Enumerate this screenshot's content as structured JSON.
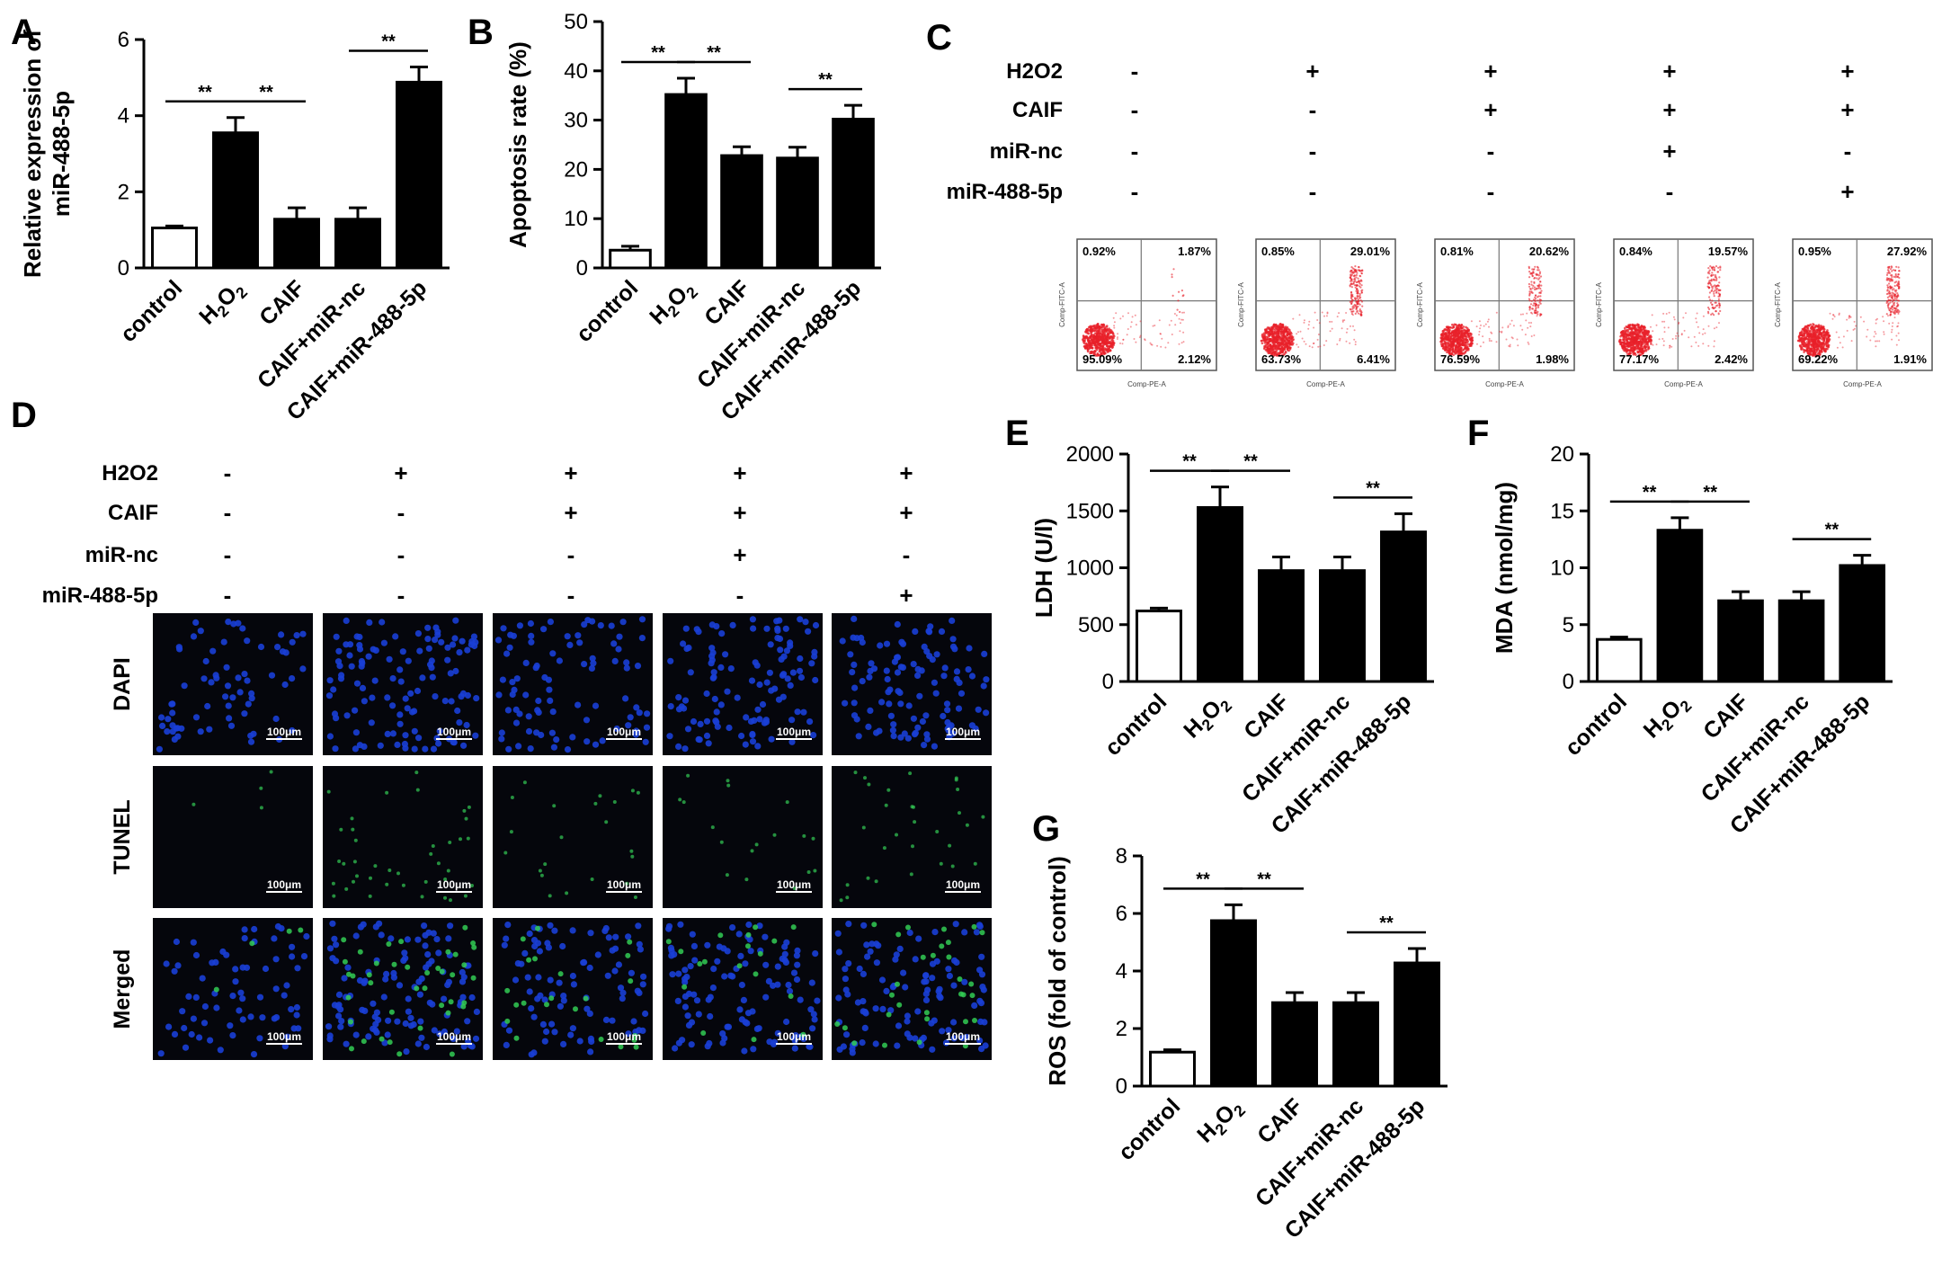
{
  "panels": {
    "A": {
      "letter": "A"
    },
    "B": {
      "letter": "B"
    },
    "C": {
      "letter": "C"
    },
    "D": {
      "letter": "D"
    },
    "E": {
      "letter": "E"
    },
    "F": {
      "letter": "F"
    },
    "G": {
      "letter": "G"
    }
  },
  "treatment_rows": [
    "H2O2",
    "CAIF",
    "miR-nc",
    "miR-488-5p"
  ],
  "treatment_signs": [
    [
      "-",
      "+",
      "+",
      "+",
      "+"
    ],
    [
      "-",
      "-",
      "+",
      "+",
      "+"
    ],
    [
      "-",
      "-",
      "-",
      "+",
      "-"
    ],
    [
      "-",
      "-",
      "-",
      "-",
      "+"
    ]
  ],
  "significance_mark": "**",
  "chart_data": [
    {
      "id": "A",
      "type": "bar",
      "categories": [
        "control",
        "H2O2",
        "CAIF",
        "CAIF+miR-nc",
        "CAIF+miR-488-5p"
      ],
      "values": [
        1.05,
        3.55,
        1.28,
        1.28,
        4.88
      ],
      "errors": [
        0.05,
        0.4,
        0.3,
        0.3,
        0.4
      ],
      "ylabel_lines": [
        "Relative expression of",
        "miR-488-5p"
      ],
      "ylim": [
        0,
        6
      ],
      "yticks": [
        0,
        2,
        4,
        6
      ],
      "significance": [
        [
          0,
          1
        ],
        [
          1,
          2
        ],
        [
          3,
          4
        ]
      ]
    },
    {
      "id": "B",
      "type": "bar",
      "categories": [
        "control",
        "H2O2",
        "CAIF",
        "CAIF+miR-nc",
        "CAIF+miR-488-5p"
      ],
      "values": [
        3.6,
        35.2,
        22.8,
        22.3,
        30.2
      ],
      "errors": [
        0.8,
        3.3,
        1.8,
        2.2,
        2.8
      ],
      "ylabel_lines": [
        "Apoptosis rate (%)"
      ],
      "ylim": [
        0,
        50
      ],
      "yticks": [
        0,
        10,
        20,
        30,
        40,
        50
      ],
      "significance": [
        [
          0,
          1
        ],
        [
          1,
          2
        ],
        [
          3,
          4
        ]
      ]
    },
    {
      "id": "E",
      "type": "bar",
      "categories": [
        "control",
        "H2O2",
        "CAIF",
        "CAIF+miR-nc",
        "CAIF+miR-488-5p"
      ],
      "values": [
        620,
        1530,
        975,
        975,
        1315
      ],
      "errors": [
        25,
        180,
        120,
        120,
        160
      ],
      "ylabel_lines": [
        "LDH (U/l)"
      ],
      "ylim": [
        0,
        2000
      ],
      "yticks": [
        0,
        500,
        1000,
        1500,
        2000
      ],
      "significance": [
        [
          0,
          1
        ],
        [
          1,
          2
        ],
        [
          3,
          4
        ]
      ]
    },
    {
      "id": "F",
      "type": "bar",
      "categories": [
        "control",
        "H2O2",
        "CAIF",
        "CAIF+miR-nc",
        "CAIF+miR-488-5p"
      ],
      "values": [
        3.7,
        13.3,
        7.1,
        7.1,
        10.2
      ],
      "errors": [
        0.2,
        1.1,
        0.8,
        0.8,
        0.9
      ],
      "ylabel_lines": [
        "MDA (nmol/mg)"
      ],
      "ylim": [
        0,
        20
      ],
      "yticks": [
        0,
        5,
        10,
        15,
        20
      ],
      "significance": [
        [
          0,
          1
        ],
        [
          1,
          2
        ],
        [
          3,
          4
        ]
      ]
    },
    {
      "id": "G",
      "type": "bar",
      "categories": [
        "control",
        "H2O2",
        "CAIF",
        "CAIF+miR-nc",
        "CAIF+miR-488-5p"
      ],
      "values": [
        1.18,
        5.75,
        2.9,
        2.9,
        4.28
      ],
      "errors": [
        0.08,
        0.55,
        0.35,
        0.35,
        0.5
      ],
      "ylabel_lines": [
        "ROS (fold of control)"
      ],
      "ylim": [
        0,
        8
      ],
      "yticks": [
        0,
        2,
        4,
        6,
        8
      ],
      "significance": [
        [
          0,
          1
        ],
        [
          1,
          2
        ],
        [
          3,
          4
        ]
      ]
    }
  ],
  "flow_cytometry": [
    {
      "q1": "0.92%",
      "q2": "1.87%",
      "q3": "95.09%",
      "q4": "2.12%"
    },
    {
      "q1": "0.85%",
      "q2": "29.01%",
      "q3": "63.73%",
      "q4": "6.41%"
    },
    {
      "q1": "0.81%",
      "q2": "20.62%",
      "q3": "76.59%",
      "q4": "1.98%"
    },
    {
      "q1": "0.84%",
      "q2": "19.57%",
      "q3": "77.17%",
      "q4": "2.42%"
    },
    {
      "q1": "0.95%",
      "q2": "27.92%",
      "q3": "69.22%",
      "q4": "1.91%"
    }
  ],
  "flow_axes": {
    "x": "Comp-PE-A",
    "y": "Comp-FITC-A"
  },
  "microscopy": {
    "rows": [
      "DAPI",
      "TUNEL",
      "Merged"
    ],
    "scale_bar": "100μm"
  },
  "colors": {
    "bar_fill": "#000000",
    "control_fill": "#ffffff",
    "dapi": "#1a3fd6",
    "tunel": "#33cc55",
    "flow_dots": "#e8202a"
  }
}
